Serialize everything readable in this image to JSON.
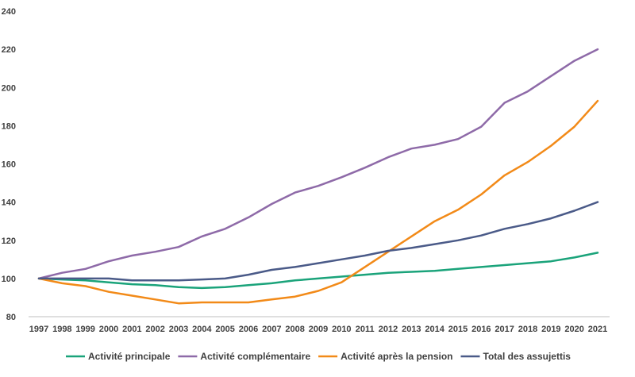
{
  "chart_data": {
    "type": "line",
    "title": "",
    "xlabel": "",
    "ylabel": "",
    "x": [
      "1997",
      "1998",
      "1999",
      "2000",
      "2001",
      "2002",
      "2003",
      "2004",
      "2005",
      "2006",
      "2007",
      "2008",
      "2009",
      "2010",
      "2011",
      "2012",
      "2013",
      "2014",
      "2015",
      "2016",
      "2017",
      "2018",
      "2019",
      "2020",
      "2021"
    ],
    "ylim": [
      80,
      240
    ],
    "yticks": [
      80,
      100,
      120,
      140,
      160,
      180,
      200,
      220,
      240
    ],
    "grid": false,
    "legend_position": "bottom",
    "series": [
      {
        "name": "Activité principale",
        "color": "#1aa37a",
        "values": [
          100,
          99.5,
          99,
          98,
          97,
          96.5,
          95.5,
          95,
          95.5,
          96.5,
          97.5,
          99,
          100,
          101,
          102,
          103,
          103.5,
          104,
          105,
          106,
          107,
          108,
          109,
          111,
          113.5
        ]
      },
      {
        "name": "Activité complémentaire",
        "color": "#8e6aa8",
        "values": [
          100,
          103,
          105,
          109,
          112,
          114,
          116.5,
          122,
          126,
          132,
          139,
          145,
          148.5,
          153,
          158,
          163.5,
          168,
          170,
          173,
          179.5,
          192,
          198,
          206,
          214,
          220
        ]
      },
      {
        "name": "Activité après la pension",
        "color": "#f28a18",
        "values": [
          100,
          97.5,
          96,
          93,
          91,
          89,
          87,
          87.5,
          87.5,
          87.5,
          89,
          90.5,
          93.5,
          98,
          106,
          114,
          122,
          130,
          136,
          144,
          154,
          161,
          169.5,
          179.5,
          193
        ]
      },
      {
        "name": "Total des assujettis",
        "color": "#4a5a88",
        "values": [
          100,
          100,
          100,
          100,
          99,
          99,
          99,
          99.5,
          100,
          102,
          104.5,
          106,
          108,
          110,
          112,
          114.5,
          116,
          118,
          120,
          122.5,
          126,
          128.5,
          131.5,
          135.5,
          140
        ]
      }
    ]
  }
}
